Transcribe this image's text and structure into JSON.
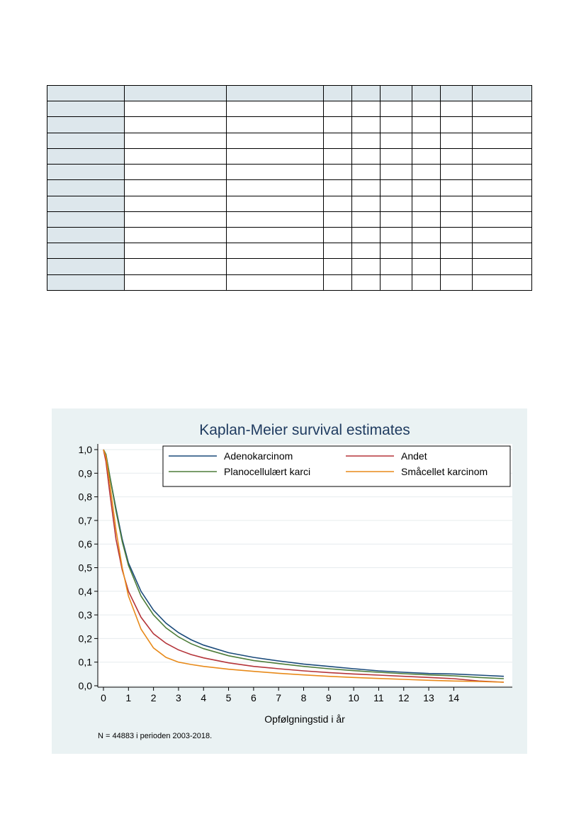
{
  "table": {
    "rows": 13,
    "columns": 9
  },
  "figure": {
    "footnote": "N = 44883 i perioden 2003-2018."
  },
  "chart_data": {
    "type": "line",
    "title": "Kaplan-Meier survival estimates",
    "xlabel": "Opfølgningstid i år",
    "ylabel": "",
    "xlim": [
      0,
      16
    ],
    "ylim": [
      0,
      1
    ],
    "x_ticks": [
      0,
      1,
      2,
      3,
      4,
      5,
      6,
      7,
      8,
      9,
      10,
      11,
      12,
      13,
      14
    ],
    "y_ticks": [
      "0,0",
      "0,1",
      "0,2",
      "0,3",
      "0,4",
      "0,5",
      "0,6",
      "0,7",
      "0,8",
      "0,9",
      "1,0"
    ],
    "grid": true,
    "legend_position": "top-right",
    "series": [
      {
        "name": "Adenokarcinom",
        "color": "#1a4a7a",
        "x": [
          0,
          0.1,
          0.25,
          0.5,
          0.75,
          1,
          1.5,
          2,
          2.5,
          3,
          3.5,
          4,
          5,
          6,
          7,
          8,
          9,
          10,
          11,
          12,
          13,
          14,
          15,
          16
        ],
        "y": [
          1.0,
          0.98,
          0.89,
          0.75,
          0.62,
          0.52,
          0.4,
          0.32,
          0.265,
          0.225,
          0.195,
          0.172,
          0.14,
          0.12,
          0.105,
          0.092,
          0.082,
          0.072,
          0.063,
          0.057,
          0.052,
          0.05,
          0.045,
          0.04
        ]
      },
      {
        "name": "Andet",
        "color": "#b5353a",
        "x": [
          0,
          0.1,
          0.25,
          0.5,
          0.75,
          1,
          1.5,
          2,
          2.5,
          3,
          3.5,
          4,
          5,
          6,
          7,
          8,
          9,
          10,
          11,
          12,
          13,
          14,
          15,
          16
        ],
        "y": [
          1.0,
          0.95,
          0.82,
          0.62,
          0.49,
          0.4,
          0.29,
          0.22,
          0.18,
          0.152,
          0.132,
          0.118,
          0.097,
          0.082,
          0.072,
          0.063,
          0.056,
          0.05,
          0.045,
          0.04,
          0.035,
          0.03,
          0.02,
          0.015
        ]
      },
      {
        "name": "Planocellulært karci",
        "color": "#4e7d3a",
        "x": [
          0,
          0.1,
          0.25,
          0.5,
          0.75,
          1,
          1.5,
          2,
          2.5,
          3,
          3.5,
          4,
          5,
          6,
          7,
          8,
          9,
          10,
          11,
          12,
          13,
          14,
          15,
          16
        ],
        "y": [
          1.0,
          0.98,
          0.89,
          0.74,
          0.61,
          0.51,
          0.38,
          0.3,
          0.245,
          0.207,
          0.178,
          0.157,
          0.127,
          0.107,
          0.094,
          0.082,
          0.072,
          0.064,
          0.057,
          0.051,
          0.046,
          0.042,
          0.035,
          0.03
        ]
      },
      {
        "name": "Småcellet karcinom",
        "color": "#e88a1a",
        "x": [
          0,
          0.1,
          0.25,
          0.5,
          0.75,
          1,
          1.5,
          2,
          2.5,
          3,
          3.5,
          4,
          5,
          6,
          7,
          8,
          9,
          10,
          11,
          12,
          13,
          14,
          15,
          16
        ],
        "y": [
          1.0,
          0.97,
          0.86,
          0.66,
          0.5,
          0.38,
          0.24,
          0.16,
          0.12,
          0.1,
          0.09,
          0.082,
          0.07,
          0.061,
          0.053,
          0.046,
          0.04,
          0.035,
          0.031,
          0.027,
          0.023,
          0.02,
          0.018,
          0.015
        ]
      }
    ]
  }
}
